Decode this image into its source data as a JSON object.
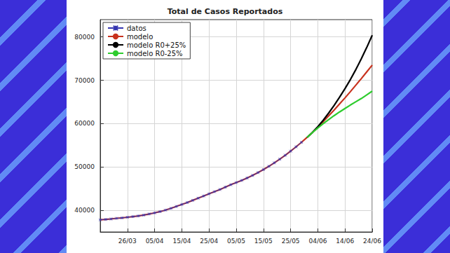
{
  "chart_data": {
    "type": "line",
    "title": "Total de Casos Reportados",
    "x": [
      null,
      null,
      null,
      null,
      null,
      "26/03",
      null,
      null,
      null,
      null,
      "05/04",
      null,
      null,
      null,
      null,
      "15/04",
      null,
      null,
      null,
      null,
      "25/04",
      null,
      null,
      null,
      null,
      "05/05",
      null,
      null,
      null,
      null,
      "15/05",
      null,
      null,
      null,
      null,
      "25/05",
      null,
      null,
      null,
      null,
      "04/06",
      null,
      null,
      null,
      null,
      "14/06",
      null,
      null,
      null,
      null,
      "24/06"
    ],
    "series": [
      {
        "name": "datos",
        "color": "#3535b0",
        "marker": "x",
        "line_style": "solid",
        "values": [
          37800,
          37900,
          38000,
          38150,
          38250,
          38400,
          38550,
          38700,
          38900,
          39150,
          39400,
          39700,
          40050,
          40450,
          40900,
          41350,
          41800,
          42300,
          42800,
          43300,
          43800,
          44300,
          44800,
          45350,
          45900,
          46400,
          46900,
          47450,
          48050,
          48700,
          49400,
          50150,
          50950,
          51800,
          52700,
          53650,
          54650,
          55700,
          null,
          null,
          null,
          null,
          null,
          null,
          null,
          null,
          null,
          null,
          null,
          null,
          null
        ]
      },
      {
        "name": "modelo",
        "color": "#c8321e",
        "marker": "none",
        "line_style": "solid",
        "values": [
          37800,
          37900,
          38000,
          38150,
          38250,
          38400,
          38550,
          38700,
          38900,
          39150,
          39400,
          39700,
          40050,
          40450,
          40900,
          41350,
          41800,
          42300,
          42800,
          43300,
          43800,
          44300,
          44800,
          45350,
          45900,
          46400,
          46900,
          47450,
          48050,
          48700,
          49400,
          50150,
          50950,
          51800,
          52700,
          53650,
          54650,
          55700,
          56800,
          57950,
          59150,
          60450,
          61800,
          63150,
          64550,
          65950,
          67400,
          68900,
          70400,
          71950,
          73500
        ]
      },
      {
        "name": "modelo R0+25%",
        "color": "#000000",
        "marker": "none",
        "line_style": "solid",
        "values": [
          null,
          null,
          null,
          null,
          null,
          null,
          null,
          null,
          null,
          null,
          null,
          null,
          null,
          null,
          null,
          null,
          null,
          null,
          null,
          null,
          null,
          null,
          null,
          null,
          null,
          null,
          null,
          null,
          null,
          null,
          null,
          null,
          null,
          null,
          null,
          null,
          null,
          null,
          56800,
          57950,
          59300,
          60800,
          62450,
          64200,
          66100,
          68100,
          70200,
          72500,
          75000,
          77600,
          80400
        ]
      },
      {
        "name": "modelo R0-25%",
        "color": "#2ecc2e",
        "marker": "none",
        "line_style": "solid",
        "values": [
          null,
          null,
          null,
          null,
          null,
          null,
          null,
          null,
          null,
          null,
          null,
          null,
          null,
          null,
          null,
          null,
          null,
          null,
          null,
          null,
          null,
          null,
          null,
          null,
          null,
          null,
          null,
          null,
          null,
          null,
          null,
          null,
          null,
          null,
          null,
          null,
          null,
          null,
          56800,
          57950,
          59000,
          60000,
          60950,
          61850,
          62700,
          63500,
          64300,
          65050,
          65800,
          66650,
          67500
        ]
      }
    ],
    "ylim": [
      35000,
      84000
    ],
    "yticks": [
      40000,
      50000,
      60000,
      70000,
      80000
    ],
    "grid": true,
    "legend": "upper left"
  }
}
